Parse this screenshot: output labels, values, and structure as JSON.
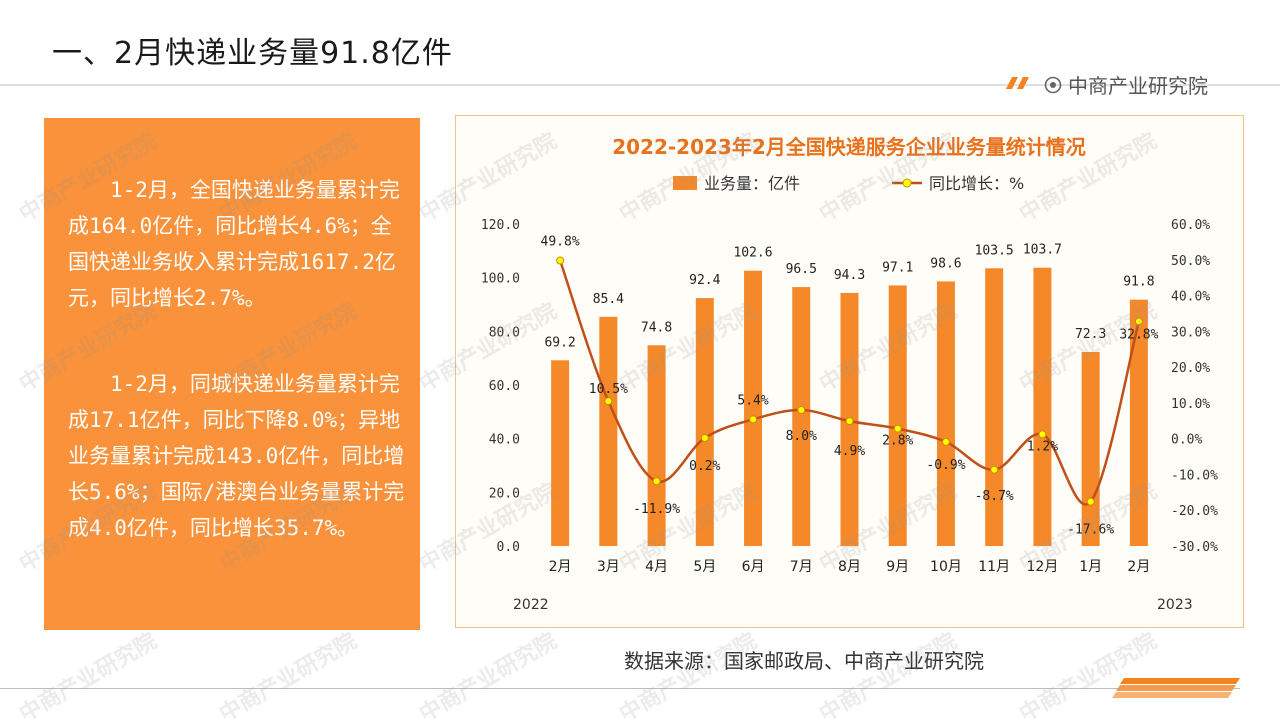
{
  "page": {
    "title": "一、2月快递业务量91.8亿件",
    "brand": "中商产业研究院",
    "brand_icon": "target-circle-icon",
    "watermark": "中商产业研究院",
    "source": "数据来源：国家邮政局、中商产业研究院"
  },
  "summary": {
    "paragraph1": "1-2月，全国快递业务量累计完成164.0亿件，同比增长4.6%；全国快递业务收入累计完成1617.2亿元，同比增长2.7%。",
    "paragraph2": "1-2月，同城快递业务量累计完成17.1亿件，同比下降8.0%；异地业务量累计完成143.0亿件，同比增长5.6%；国际/港澳台业务量累计完成4.0亿件，同比增长35.7%。"
  },
  "colors": {
    "accent": "#f9923a",
    "bar": "#f5892a",
    "line": "#c0501a",
    "marker_fill": "#ffff00",
    "title": "#e8711d"
  },
  "chart_data": {
    "type": "bar",
    "title": "2022-2023年2月全国快递服务企业业务量统计情况",
    "categories": [
      "2月",
      "3月",
      "4月",
      "5月",
      "6月",
      "7月",
      "8月",
      "9月",
      "10月",
      "11月",
      "12月",
      "1月",
      "2月"
    ],
    "year_labels": [
      "2022",
      "2023"
    ],
    "series": [
      {
        "name": "业务量：亿件",
        "type": "bar",
        "axis": "left",
        "values": [
          69.2,
          85.4,
          74.8,
          92.4,
          102.6,
          96.5,
          94.3,
          97.1,
          98.6,
          103.5,
          103.7,
          72.3,
          91.8
        ],
        "labels": [
          "69.2",
          "85.4",
          "74.8",
          "92.4",
          "102.6",
          "96.5",
          "94.3",
          "97.1",
          "98.6",
          "103.5",
          "103.7",
          "72.3",
          "91.8"
        ]
      },
      {
        "name": "同比增长：%",
        "type": "line",
        "axis": "right",
        "values": [
          49.8,
          10.5,
          -11.9,
          0.2,
          5.4,
          8.0,
          4.9,
          2.8,
          -0.9,
          -8.7,
          1.2,
          -17.6,
          32.8
        ],
        "labels": [
          "49.8%",
          "10.5%",
          "-11.9%",
          "0.2%",
          "5.4%",
          "8.0%",
          "4.9%",
          "2.8%",
          "-0.9%",
          "-8.7%",
          "1.2%",
          "-17.6%",
          "32.8%"
        ]
      }
    ],
    "y_left": {
      "min": 0,
      "max": 120,
      "ticks": [
        "0.0",
        "20.0",
        "40.0",
        "60.0",
        "80.0",
        "100.0",
        "120.0"
      ]
    },
    "y_right": {
      "min": -30,
      "max": 60,
      "ticks": [
        "-30.0%",
        "-20.0%",
        "-10.0%",
        "0.0%",
        "10.0%",
        "20.0%",
        "30.0%",
        "40.0%",
        "50.0%",
        "60.0%"
      ]
    },
    "grid": false,
    "legend": "top"
  }
}
